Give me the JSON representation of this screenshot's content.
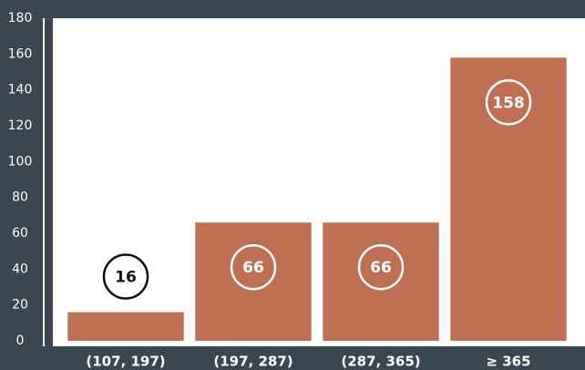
{
  "chart_data": {
    "type": "bar",
    "categories": [
      "(107, 197)",
      "(197, 287)",
      "(287, 365)",
      "≥ 365"
    ],
    "values": [
      16,
      66,
      66,
      158
    ],
    "color": "#c07052",
    "ylim": [
      0,
      180
    ],
    "yticks": [
      0,
      20,
      40,
      60,
      80,
      100,
      120,
      140,
      160,
      180
    ]
  }
}
